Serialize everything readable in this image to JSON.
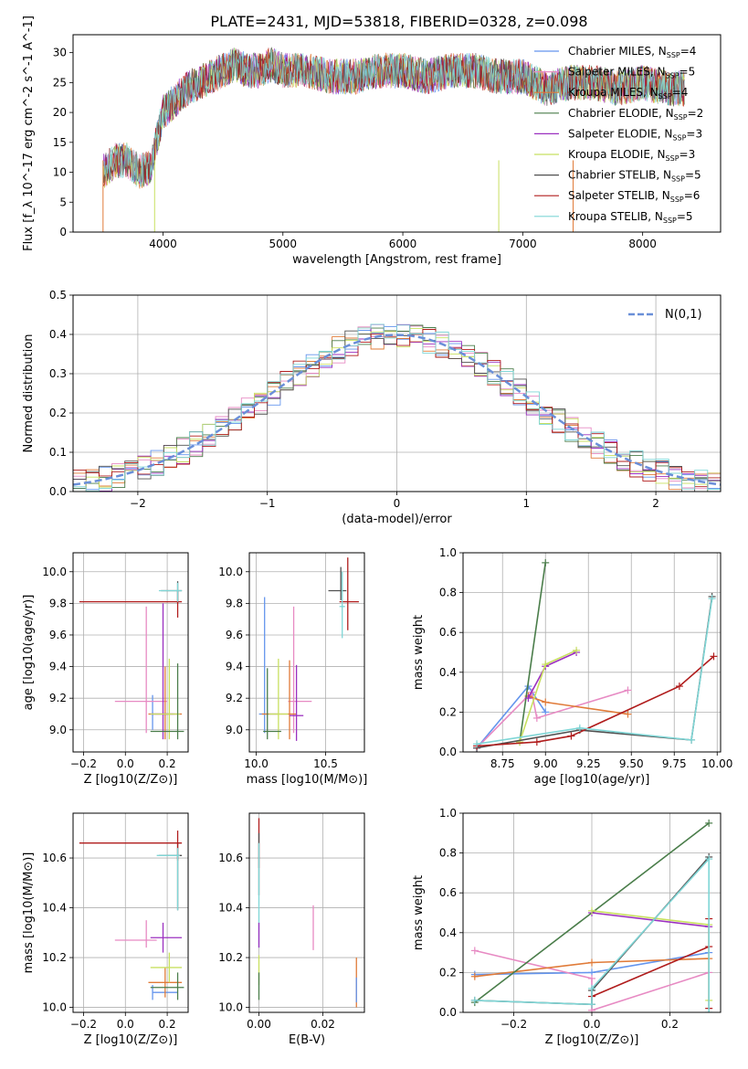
{
  "page_title": "PLATE=2431, MJD=53818, FIBERID=0328, z=0.098",
  "legend_labels": [
    {
      "name": "Chabrier MILES, N",
      "sub": "SSP",
      "eq": "=4",
      "color": "#6495ed"
    },
    {
      "name": "Salpeter MILES, N",
      "sub": "SSP",
      "eq": "=5",
      "color": "#e78ac3"
    },
    {
      "name": "Kroupa MILES, N",
      "sub": "SSP",
      "eq": "=4",
      "color": "#e07b39"
    },
    {
      "name": "Chabrier ELODIE, N",
      "sub": "SSP",
      "eq": "=2",
      "color": "#4a7d4a"
    },
    {
      "name": "Salpeter ELODIE, N",
      "sub": "SSP",
      "eq": "=3",
      "color": "#9b30c0"
    },
    {
      "name": "Kroupa ELODIE, N",
      "sub": "SSP",
      "eq": "=3",
      "color": "#c8e060"
    },
    {
      "name": "Chabrier STELIB, N",
      "sub": "SSP",
      "eq": "=5",
      "color": "#505050"
    },
    {
      "name": "Salpeter STELIB, N",
      "sub": "SSP",
      "eq": "=6",
      "color": "#b01c1c"
    },
    {
      "name": "Kroupa STELIB, N",
      "sub": "SSP",
      "eq": "=5",
      "color": "#7fd6d6"
    }
  ],
  "chart_data": [
    {
      "type": "line",
      "panel": "spectrum",
      "xlabel": "wavelength [Angstrom, rest frame]",
      "ylabel": "Flux [f_λ 10^-17 erg cm^-2 s^-1 A^-1]",
      "xlim": [
        3250,
        8650
      ],
      "ylim": [
        0,
        33
      ],
      "xticks": [
        4000,
        5000,
        6000,
        7000,
        8000
      ],
      "yticks": [
        0,
        5,
        10,
        15,
        20,
        25,
        30
      ],
      "grid": false,
      "legend": "top-right",
      "envelope": [
        [
          3500,
          10
        ],
        [
          3600,
          12
        ],
        [
          3700,
          12
        ],
        [
          3800,
          10
        ],
        [
          3900,
          11
        ],
        [
          4000,
          20
        ],
        [
          4100,
          22
        ],
        [
          4200,
          24
        ],
        [
          4300,
          25
        ],
        [
          4400,
          26
        ],
        [
          4500,
          27
        ],
        [
          4600,
          28
        ],
        [
          4700,
          27
        ],
        [
          4800,
          27
        ],
        [
          4900,
          28
        ],
        [
          5000,
          27
        ],
        [
          5200,
          27
        ],
        [
          5400,
          26
        ],
        [
          5600,
          26
        ],
        [
          5800,
          27
        ],
        [
          6000,
          27
        ],
        [
          6200,
          26
        ],
        [
          6400,
          27
        ],
        [
          6600,
          27
        ],
        [
          6800,
          26
        ],
        [
          7000,
          26
        ],
        [
          7200,
          24
        ],
        [
          7400,
          25
        ],
        [
          7600,
          25
        ],
        [
          7800,
          24
        ],
        [
          8000,
          25
        ],
        [
          8200,
          24
        ],
        [
          8350,
          24
        ]
      ]
    },
    {
      "type": "line",
      "panel": "residuals",
      "xlabel": "(data-model)/error",
      "ylabel": "Normed distribution",
      "xlim": [
        -2.5,
        2.5
      ],
      "ylim": [
        0,
        0.5
      ],
      "xticks": [
        -2,
        -1,
        0,
        1,
        2
      ],
      "yticks": [
        0.0,
        0.1,
        0.2,
        0.3,
        0.4,
        0.5
      ],
      "grid": true,
      "legend": "top-right",
      "gauss_label": "N(0,1)"
    },
    {
      "type": "scatter",
      "panel": "age-vs-Z",
      "xlabel": "Z [log10(Z/Z⊙)]",
      "ylabel": "age [log10(age/yr)]",
      "xlim": [
        -0.25,
        0.3
      ],
      "ylim": [
        8.86,
        10.12
      ],
      "xticks": [
        -0.2,
        0.0,
        0.2
      ],
      "yticks": [
        9.0,
        9.2,
        9.4,
        9.6,
        9.8,
        10.0
      ],
      "points": [
        {
          "x": 0.25,
          "y": 9.88,
          "xerr": [
            0.08,
            0.02
          ],
          "yerr": [
            0.08,
            0.06
          ],
          "c": "#505050"
        },
        {
          "x": 0.25,
          "y": 9.81,
          "xerr": [
            0.47,
            0.02
          ],
          "yerr": [
            0.1,
            0.07
          ],
          "c": "#b01c1c"
        },
        {
          "x": 0.25,
          "y": 9.88,
          "xerr": [
            0.09,
            0.02
          ],
          "yerr": [
            0.07,
            0.05
          ],
          "c": "#7fd6d6"
        },
        {
          "x": 0.13,
          "y": 9.1,
          "xerr": [
            0.0,
            0.1
          ],
          "yerr": [
            0.1,
            0.12
          ],
          "c": "#6495ed"
        },
        {
          "x": 0.1,
          "y": 9.18,
          "xerr": [
            0.15,
            0.1
          ],
          "yerr": [
            0.2,
            0.6
          ],
          "c": "#e78ac3"
        },
        {
          "x": 0.19,
          "y": 9.1,
          "xerr": [
            0.08,
            0.08
          ],
          "yerr": [
            0.16,
            0.3
          ],
          "c": "#e07b39"
        },
        {
          "x": 0.18,
          "y": 9.1,
          "xerr": [
            0.06,
            0.06
          ],
          "yerr": [
            0.16,
            0.7
          ],
          "c": "#9b30c0"
        },
        {
          "x": 0.21,
          "y": 9.1,
          "xerr": [
            0.09,
            0.05
          ],
          "yerr": [
            0.16,
            0.35
          ],
          "c": "#c8e060"
        },
        {
          "x": 0.25,
          "y": 8.99,
          "xerr": [
            0.13,
            0.03
          ],
          "yerr": [
            0.05,
            0.43
          ],
          "c": "#4a7d4a"
        }
      ]
    },
    {
      "type": "scatter",
      "panel": "age-vs-mass",
      "xlabel": "mass [log10(M/M⊙)]",
      "xlim": [
        9.95,
        10.78
      ],
      "ylim": [
        8.86,
        10.12
      ],
      "xticks": [
        10.0,
        10.5
      ],
      "yticks": [
        9.0,
        9.2,
        9.4,
        9.6,
        9.8,
        10.0
      ],
      "points": [
        {
          "x": 10.61,
          "y": 9.88,
          "xerr": [
            0.09,
            0.04
          ],
          "yerr": [
            0.06,
            0.15
          ],
          "c": "#505050"
        },
        {
          "x": 10.66,
          "y": 9.81,
          "xerr": [
            0.06,
            0.08
          ],
          "yerr": [
            0.18,
            0.28
          ],
          "c": "#b01c1c"
        },
        {
          "x": 10.62,
          "y": 9.78,
          "xerr": [
            0.02,
            0.02
          ],
          "yerr": [
            0.2,
            0.22
          ],
          "c": "#7fd6d6"
        },
        {
          "x": 10.06,
          "y": 9.1,
          "xerr": [
            0.04,
            0.1
          ],
          "yerr": [
            0.12,
            0.74
          ],
          "c": "#6495ed"
        },
        {
          "x": 10.27,
          "y": 9.18,
          "xerr": [
            0.04,
            0.13
          ],
          "yerr": [
            0.2,
            0.6
          ],
          "c": "#e78ac3"
        },
        {
          "x": 10.24,
          "y": 9.1,
          "xerr": [
            0.2,
            0.05
          ],
          "yerr": [
            0.16,
            0.34
          ],
          "c": "#e07b39"
        },
        {
          "x": 10.29,
          "y": 9.09,
          "xerr": [
            0.05,
            0.05
          ],
          "yerr": [
            0.16,
            0.32
          ],
          "c": "#9b30c0"
        },
        {
          "x": 10.16,
          "y": 9.1,
          "xerr": [
            0.07,
            0.07
          ],
          "yerr": [
            0.16,
            0.35
          ],
          "c": "#c8e060"
        },
        {
          "x": 10.08,
          "y": 8.99,
          "xerr": [
            0.03,
            0.1
          ],
          "yerr": [
            0.05,
            0.4
          ],
          "c": "#4a7d4a"
        }
      ]
    },
    {
      "type": "line",
      "panel": "massweight-vs-age",
      "xlabel": "age [log10(age/yr)]",
      "ylabel": "mass weight",
      "xlim": [
        8.52,
        10.02
      ],
      "ylim": [
        0,
        1.0
      ],
      "xticks": [
        8.75,
        9.0,
        9.25,
        9.5,
        9.75,
        10.0
      ],
      "yticks": [
        0.0,
        0.2,
        0.4,
        0.6,
        0.8,
        1.0
      ],
      "grid": true,
      "series": [
        {
          "c": "#6495ed",
          "pts": [
            [
              8.6,
              0.02
            ],
            [
              8.9,
              0.33
            ],
            [
              9.0,
              0.2
            ]
          ]
        },
        {
          "c": "#e78ac3",
          "pts": [
            [
              8.6,
              0.02
            ],
            [
              8.92,
              0.3
            ],
            [
              8.95,
              0.17
            ],
            [
              9.48,
              0.31
            ]
          ]
        },
        {
          "c": "#e07b39",
          "pts": [
            [
              8.9,
              0.28
            ],
            [
              9.0,
              0.25
            ],
            [
              9.48,
              0.19
            ]
          ]
        },
        {
          "c": "#4a7d4a",
          "pts": [
            [
              8.85,
              0.05
            ],
            [
              9.0,
              0.95
            ]
          ]
        },
        {
          "c": "#9b30c0",
          "pts": [
            [
              8.9,
              0.27
            ],
            [
              9.0,
              0.43
            ],
            [
              9.18,
              0.5
            ]
          ]
        },
        {
          "c": "#c8e060",
          "pts": [
            [
              8.85,
              0.05
            ],
            [
              9.0,
              0.44
            ],
            [
              9.18,
              0.51
            ]
          ]
        },
        {
          "c": "#505050",
          "pts": [
            [
              8.6,
              0.02
            ],
            [
              9.2,
              0.11
            ],
            [
              9.85,
              0.06
            ],
            [
              9.97,
              0.78
            ]
          ]
        },
        {
          "c": "#b01c1c",
          "pts": [
            [
              8.6,
              0.03
            ],
            [
              8.95,
              0.05
            ],
            [
              9.15,
              0.08
            ],
            [
              9.78,
              0.33
            ],
            [
              9.98,
              0.48
            ]
          ]
        },
        {
          "c": "#7fd6d6",
          "pts": [
            [
              8.6,
              0.04
            ],
            [
              9.2,
              0.12
            ],
            [
              9.85,
              0.06
            ],
            [
              9.97,
              0.77
            ]
          ]
        }
      ]
    },
    {
      "type": "scatter",
      "panel": "mass-vs-Z",
      "xlabel": "Z [log10(Z/Z⊙)]",
      "ylabel": "mass [log10(M/M⊙)]",
      "xlim": [
        -0.25,
        0.3
      ],
      "ylim": [
        9.98,
        10.78
      ],
      "xticks": [
        -0.2,
        0.0,
        0.2
      ],
      "yticks": [
        10.0,
        10.2,
        10.4,
        10.6
      ],
      "points": [
        {
          "x": 0.25,
          "y": 10.61,
          "xerr": [
            0.09,
            0.02
          ],
          "yerr": [
            0.22,
            0.05
          ],
          "c": "#505050"
        },
        {
          "x": 0.25,
          "y": 10.66,
          "xerr": [
            0.47,
            0.02
          ],
          "yerr": [
            0.07,
            0.05
          ],
          "c": "#b01c1c"
        },
        {
          "x": 0.25,
          "y": 10.61,
          "xerr": [
            0.1,
            0.01
          ],
          "yerr": [
            0.22,
            0.03
          ],
          "c": "#7fd6d6"
        },
        {
          "x": 0.13,
          "y": 10.06,
          "xerr": [
            0.0,
            0.12
          ],
          "yerr": [
            0.03,
            0.03
          ],
          "c": "#6495ed"
        },
        {
          "x": 0.1,
          "y": 10.27,
          "xerr": [
            0.15,
            0.05
          ],
          "yerr": [
            0.03,
            0.08
          ],
          "c": "#e78ac3"
        },
        {
          "x": 0.19,
          "y": 10.1,
          "xerr": [
            0.08,
            0.08
          ],
          "yerr": [
            0.06,
            0.06
          ],
          "c": "#e07b39"
        },
        {
          "x": 0.18,
          "y": 10.28,
          "xerr": [
            0.06,
            0.09
          ],
          "yerr": [
            0.06,
            0.06
          ],
          "c": "#9b30c0"
        },
        {
          "x": 0.21,
          "y": 10.16,
          "xerr": [
            0.09,
            0.06
          ],
          "yerr": [
            0.06,
            0.06
          ],
          "c": "#c8e060"
        },
        {
          "x": 0.25,
          "y": 10.08,
          "xerr": [
            0.13,
            0.03
          ],
          "yerr": [
            0.05,
            0.06
          ],
          "c": "#4a7d4a"
        }
      ]
    },
    {
      "type": "scatter",
      "panel": "mass-vs-EBV",
      "xlabel": "E(B-V)",
      "xlim": [
        -0.003,
        0.033
      ],
      "ylim": [
        9.98,
        10.78
      ],
      "xticks": [
        0.0,
        0.02
      ],
      "yticks": [
        10.0,
        10.2,
        10.4,
        10.6
      ],
      "points": [
        {
          "x": 0.0,
          "y": 10.66,
          "xerr": [
            0,
            0
          ],
          "yerr": [
            0.1,
            0.1
          ],
          "c": "#b01c1c"
        },
        {
          "x": 0.0,
          "y": 10.6,
          "xerr": [
            0,
            0
          ],
          "yerr": [
            0.15,
            0.1
          ],
          "c": "#505050"
        },
        {
          "x": 0.0,
          "y": 10.4,
          "xerr": [
            0,
            0
          ],
          "yerr": [
            0.16,
            0.26
          ],
          "c": "#7fd6d6"
        },
        {
          "x": 0.0,
          "y": 10.29,
          "xerr": [
            0,
            0
          ],
          "yerr": [
            0.05,
            0.05
          ],
          "c": "#9b30c0"
        },
        {
          "x": 0.0,
          "y": 10.16,
          "xerr": [
            0,
            0
          ],
          "yerr": [
            0.07,
            0.05
          ],
          "c": "#c8e060"
        },
        {
          "x": 0.0,
          "y": 10.08,
          "xerr": [
            0,
            0
          ],
          "yerr": [
            0.05,
            0.06
          ],
          "c": "#4a7d4a"
        },
        {
          "x": 0.017,
          "y": 10.32,
          "xerr": [
            0,
            0
          ],
          "yerr": [
            0.09,
            0.09
          ],
          "c": "#e78ac3"
        },
        {
          "x": 0.0305,
          "y": 10.1,
          "xerr": [
            0,
            0
          ],
          "yerr": [
            0.1,
            0.1
          ],
          "c": "#e07b39"
        },
        {
          "x": 0.0305,
          "y": 10.06,
          "xerr": [
            0,
            0
          ],
          "yerr": [
            0.04,
            0.06
          ],
          "c": "#6495ed"
        }
      ]
    },
    {
      "type": "line",
      "panel": "massweight-vs-Z",
      "xlabel": "Z [log10(Z/Z⊙)]",
      "ylabel": "mass weight",
      "xlim": [
        -0.33,
        0.33
      ],
      "ylim": [
        0,
        1.0
      ],
      "xticks": [
        -0.2,
        0.0,
        0.2
      ],
      "yticks": [
        0.0,
        0.2,
        0.4,
        0.6,
        0.8,
        1.0
      ],
      "grid": true,
      "series": [
        {
          "c": "#6495ed",
          "pts": [
            [
              -0.3,
              0.19
            ],
            [
              0.0,
              0.2
            ],
            [
              0.3,
              0.3
            ]
          ]
        },
        {
          "c": "#e78ac3",
          "pts": [
            [
              -0.3,
              0.31
            ],
            [
              0.0,
              0.17
            ],
            [
              0.0,
              0.01
            ],
            [
              0.3,
              0.2
            ]
          ]
        },
        {
          "c": "#e07b39",
          "pts": [
            [
              -0.3,
              0.18
            ],
            [
              0.0,
              0.25
            ],
            [
              0.3,
              0.27
            ]
          ]
        },
        {
          "c": "#4a7d4a",
          "pts": [
            [
              -0.3,
              0.05
            ],
            [
              0.3,
              0.95
            ]
          ]
        },
        {
          "c": "#9b30c0",
          "pts": [
            [
              0.0,
              0.5
            ],
            [
              0.3,
              0.43
            ]
          ]
        },
        {
          "c": "#c8e060",
          "pts": [
            [
              0.0,
              0.51
            ],
            [
              0.3,
              0.44
            ],
            [
              0.3,
              0.06
            ]
          ]
        },
        {
          "c": "#505050",
          "pts": [
            [
              -0.3,
              0.06
            ],
            [
              0.0,
              0.04
            ],
            [
              0.0,
              0.11
            ],
            [
              0.3,
              0.78
            ]
          ]
        },
        {
          "c": "#b01c1c",
          "pts": [
            [
              0.0,
              0.08
            ],
            [
              0.3,
              0.33
            ],
            [
              0.3,
              0.47
            ],
            [
              0.3,
              0.02
            ]
          ]
        },
        {
          "c": "#7fd6d6",
          "pts": [
            [
              -0.3,
              0.06
            ],
            [
              0.0,
              0.04
            ],
            [
              0.0,
              0.12
            ],
            [
              0.3,
              0.77
            ],
            [
              0.3,
              0.0
            ]
          ]
        }
      ]
    }
  ]
}
